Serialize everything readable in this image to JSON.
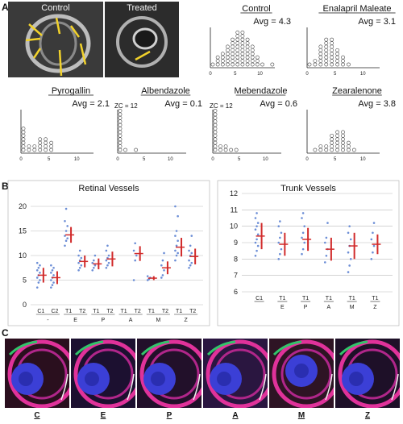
{
  "panelA": {
    "letter": "A",
    "micrographs": [
      {
        "label": "Control"
      },
      {
        "label": "Treated"
      }
    ],
    "histograms": [
      {
        "title": "Control",
        "avg": "Avg = 4.3",
        "zc": "",
        "counts": [
          1,
          3,
          4,
          6,
          8,
          10,
          10,
          8,
          6,
          3,
          1,
          0,
          1
        ]
      },
      {
        "title": "Enalapril Maleate",
        "avg": "Avg = 3.1",
        "zc": "",
        "counts": [
          1,
          2,
          6,
          8,
          8,
          5,
          3,
          1
        ]
      },
      {
        "title": "Pyrogallin",
        "avg": "Avg = 2.1",
        "zc": "",
        "counts": [
          7,
          2,
          2,
          4,
          4,
          3
        ]
      },
      {
        "title": "Albendazole",
        "avg": "Avg = 0.1",
        "zc": "ZC = 12",
        "counts": [
          12,
          1,
          0,
          1
        ]
      },
      {
        "title": "Mebendazole",
        "avg": "Avg = 0.6",
        "zc": "ZC = 12",
        "counts": [
          12,
          2,
          2,
          1,
          1
        ]
      },
      {
        "title": "Zearalenone",
        "avg": "Avg = 3.8",
        "zc": "",
        "counts": [
          0,
          1,
          2,
          2,
          5,
          6,
          6,
          3,
          1
        ]
      }
    ],
    "xticks": [
      "0",
      "5",
      "10"
    ]
  },
  "panelB": {
    "letter": "B",
    "chart_data": [
      {
        "type": "scatter",
        "title": "Retinal Vessels",
        "ylim": [
          0,
          20
        ],
        "yticks": [
          "0",
          "5",
          "10",
          "15",
          "20"
        ],
        "groups": [
          {
            "cols": [
              "C1",
              "C2"
            ],
            "label": "-"
          },
          {
            "cols": [
              "T1",
              "T2"
            ],
            "label": "E"
          },
          {
            "cols": [
              "T1",
              "T2"
            ],
            "label": "P"
          },
          {
            "cols": [
              "T1",
              "T2"
            ],
            "label": "A"
          },
          {
            "cols": [
              "T1",
              "T2"
            ],
            "label": "M"
          },
          {
            "cols": [
              "T1",
              "T2"
            ],
            "label": "Z"
          }
        ],
        "series": [
          {
            "mean": 6.0,
            "sd": 1.5,
            "points": [
              3.5,
              4.5,
              5,
              5.5,
              6,
              6.5,
              7,
              7.5,
              8,
              8.5
            ]
          },
          {
            "mean": 5.5,
            "sd": 1.3,
            "points": [
              3.5,
              4,
              4.5,
              5,
              5.5,
              6,
              6.5,
              7,
              7.5,
              8
            ]
          },
          {
            "mean": 14.2,
            "sd": 1.6,
            "points": [
              12,
              13,
              13.5,
              14,
              15,
              16,
              17,
              19.5
            ]
          },
          {
            "mean": 8.8,
            "sd": 1.2,
            "points": [
              7,
              7.5,
              8,
              8.5,
              9,
              9.5,
              10,
              11
            ]
          },
          {
            "mean": 8.3,
            "sd": 1.1,
            "points": [
              7,
              7.5,
              8,
              8.5,
              9,
              10
            ]
          },
          {
            "mean": 9.3,
            "sd": 1.5,
            "points": [
              7.5,
              8,
              8.5,
              9,
              9.5,
              10,
              11,
              12
            ]
          },
          {
            "mean": 0,
            "sd": 0,
            "points": []
          },
          {
            "mean": 10.4,
            "sd": 1.5,
            "points": [
              5,
              9,
              10,
              11,
              12.5
            ]
          },
          {
            "mean": 5.4,
            "sd": 0.4,
            "points": [
              5,
              5.2,
              5.5,
              5.8
            ]
          },
          {
            "mean": 7.5,
            "sd": 1.3,
            "points": [
              5.5,
              6,
              7,
              8,
              9,
              10.5
            ]
          },
          {
            "mean": 11.7,
            "sd": 1.9,
            "points": [
              9,
              10,
              10.5,
              11,
              12,
              13,
              14,
              15,
              18,
              20
            ]
          },
          {
            "mean": 9.8,
            "sd": 1.6,
            "points": [
              7.5,
              8,
              8.5,
              9,
              10,
              10.5,
              11,
              12,
              14
            ]
          }
        ]
      },
      {
        "type": "scatter",
        "title": "Trunk Vessels",
        "ylim": [
          6,
          12
        ],
        "yticks": [
          "6",
          "7",
          "8",
          "9",
          "10",
          "11",
          "12"
        ],
        "groups": [
          {
            "cols": [
              "C1"
            ],
            "label": ""
          },
          {
            "cols": [
              "T1"
            ],
            "label": "E"
          },
          {
            "cols": [
              "T1"
            ],
            "label": "P"
          },
          {
            "cols": [
              "T1"
            ],
            "label": "A"
          },
          {
            "cols": [
              "T1"
            ],
            "label": "M"
          },
          {
            "cols": [
              "T1"
            ],
            "label": "Z"
          }
        ],
        "series": [
          {
            "mean": 9.4,
            "sd": 0.8,
            "points": [
              8.2,
              8.5,
              8.8,
              9,
              9.2,
              9.5,
              9.8,
              10,
              10.2,
              10.5,
              10.8
            ]
          },
          {
            "mean": 8.9,
            "sd": 0.7,
            "points": [
              8,
              8.3,
              8.6,
              9,
              9.3,
              9.6,
              10,
              10.3
            ]
          },
          {
            "mean": 9.2,
            "sd": 0.7,
            "points": [
              8.3,
              8.6,
              9,
              9.3,
              9.6,
              10,
              10.5,
              10.8
            ]
          },
          {
            "mean": 8.6,
            "sd": 0.7,
            "points": [
              7.8,
              8.2,
              8.6,
              9,
              9.3,
              10.2
            ]
          },
          {
            "mean": 8.8,
            "sd": 0.8,
            "points": [
              7.2,
              7.6,
              8,
              8.4,
              8.8,
              9.2,
              9.6,
              10
            ]
          },
          {
            "mean": 8.9,
            "sd": 0.6,
            "points": [
              8,
              8.4,
              8.8,
              9.2,
              9.6,
              10.2
            ]
          }
        ]
      }
    ]
  },
  "panelC": {
    "letter": "C",
    "labels": [
      "C",
      "E",
      "P",
      "A",
      "M",
      "Z"
    ]
  }
}
